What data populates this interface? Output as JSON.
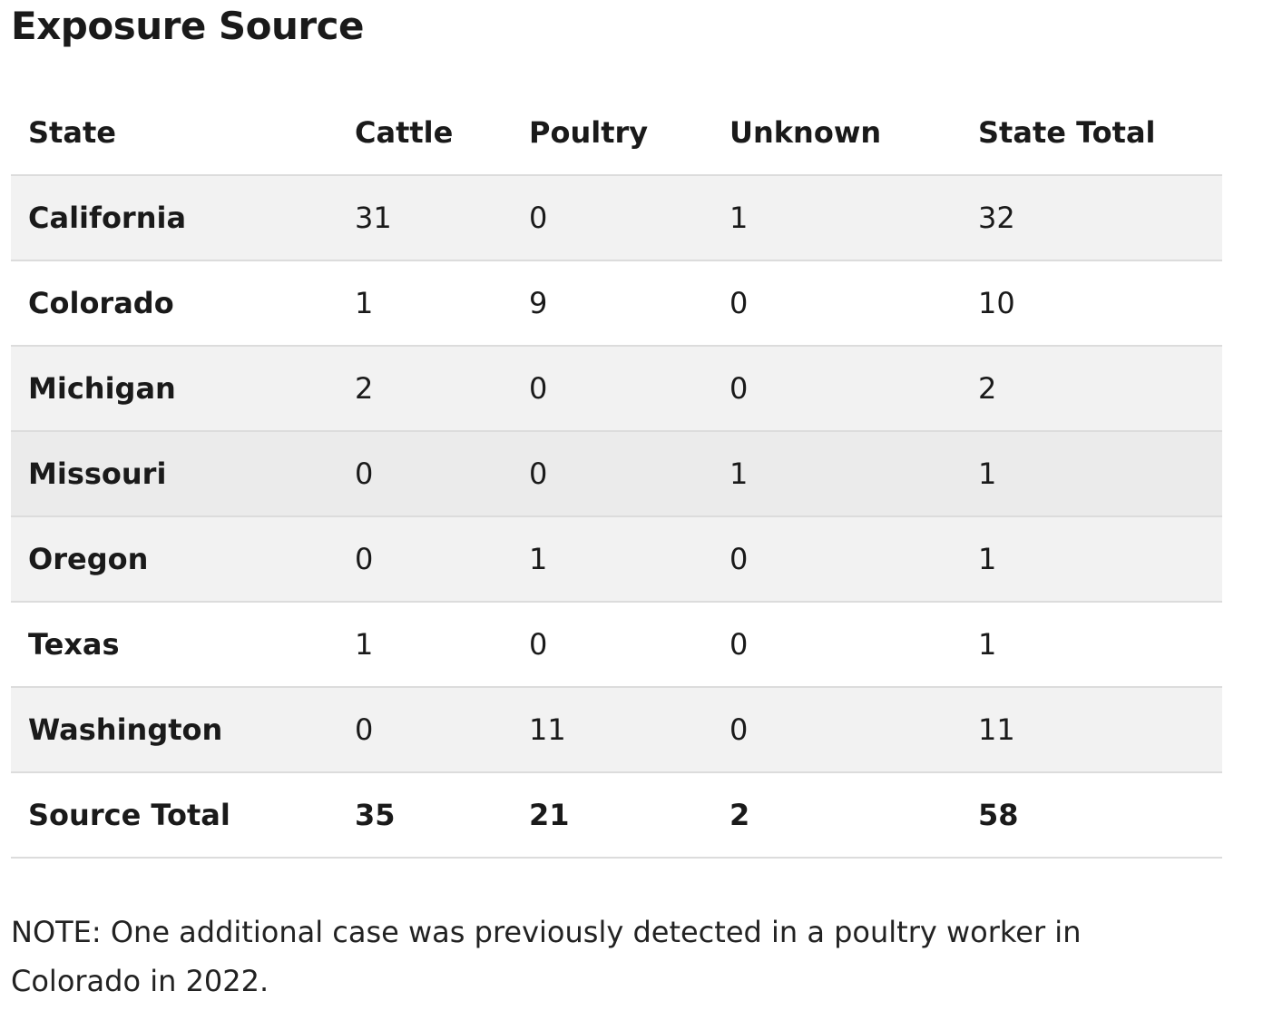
{
  "header": {
    "title": "Exposure Source"
  },
  "table": {
    "columns": [
      "State",
      "Cattle",
      "Poultry",
      "Unknown",
      "State Total"
    ],
    "rows": [
      [
        "California",
        31,
        0,
        1,
        32
      ],
      [
        "Colorado",
        1,
        9,
        0,
        10
      ],
      [
        "Michigan",
        2,
        0,
        0,
        2
      ],
      [
        "Missouri",
        0,
        0,
        1,
        1
      ],
      [
        "Oregon",
        0,
        1,
        0,
        1
      ],
      [
        "Texas",
        1,
        0,
        0,
        1
      ],
      [
        "Washington",
        0,
        11,
        0,
        11
      ]
    ],
    "total": [
      "Source Total",
      35,
      21,
      2,
      58
    ]
  },
  "note": "NOTE: One additional case was previously detected in a poultry worker in Colorado in 2022."
}
